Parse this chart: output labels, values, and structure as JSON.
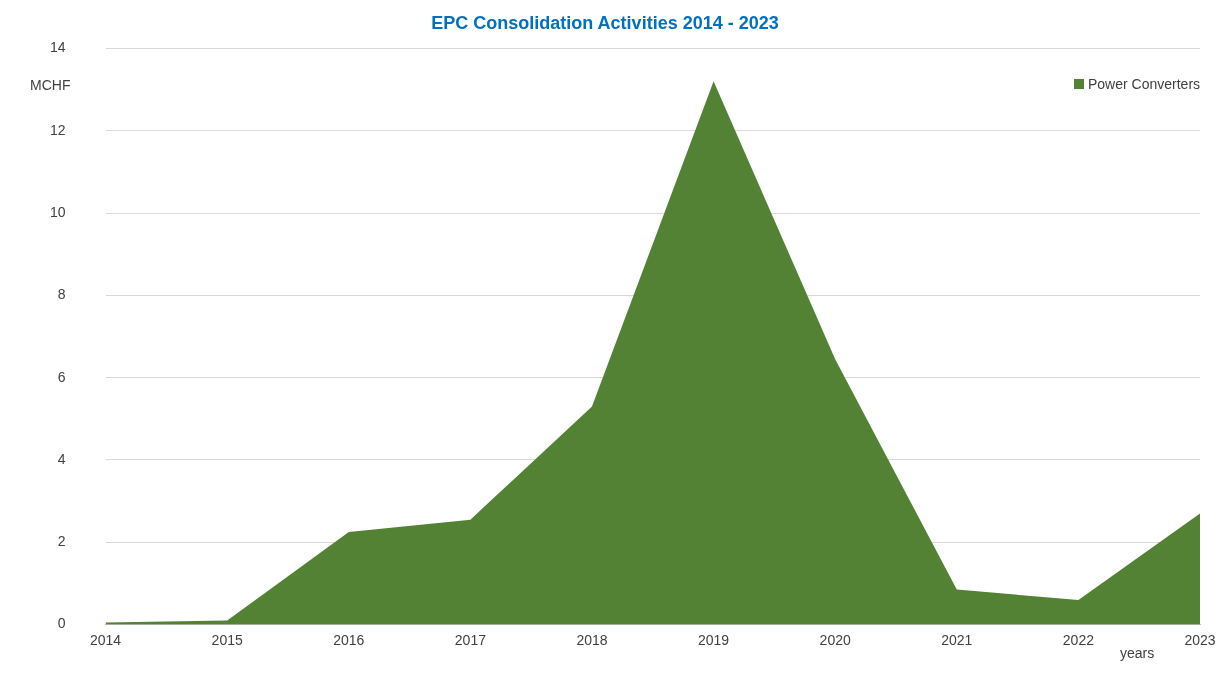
{
  "chart_data": {
    "type": "area",
    "title": "EPC Consolidation Activities 2014 - 2023",
    "ylabel": "MCHF",
    "xlabel": "years",
    "categories": [
      "2014",
      "2015",
      "2016",
      "2017",
      "2018",
      "2019",
      "2020",
      "2021",
      "2022",
      "2023"
    ],
    "series": [
      {
        "name": "Power Converters",
        "color": "#548235",
        "values": [
          0.05,
          0.1,
          2.25,
          2.55,
          5.3,
          13.2,
          6.45,
          0.85,
          0.6,
          2.7
        ]
      }
    ],
    "ylim": [
      0,
      14
    ],
    "yticks": [
      0,
      2,
      4,
      6,
      8,
      10,
      12,
      14
    ],
    "grid": "y",
    "legend": "top right"
  }
}
